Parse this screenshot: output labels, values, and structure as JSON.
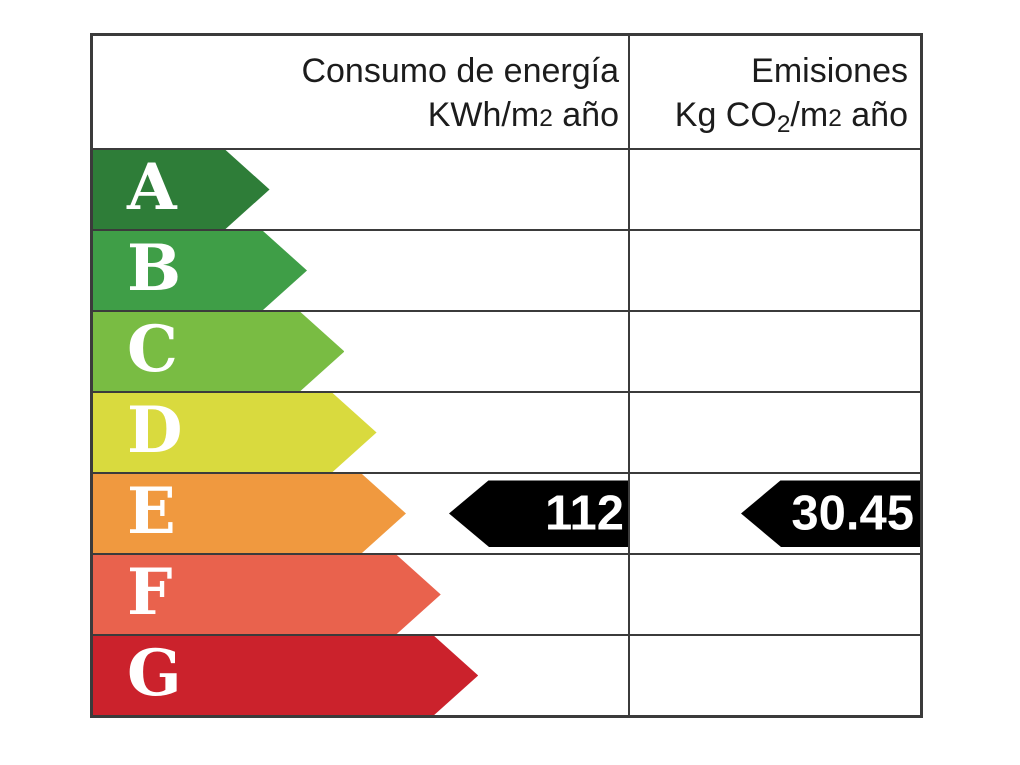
{
  "header": {
    "consumption": {
      "line1": "Consumo de energía",
      "line2_prefix": "KWh/m",
      "line2_exp": "2",
      "line2_suffix": " año"
    },
    "emissions": {
      "line1": "Emisiones",
      "line2_prefix": "Kg CO",
      "line2_sub": "2",
      "line2_mid": "/m",
      "line2_exp": "2",
      "line2_suffix": " año"
    }
  },
  "chart_data": {
    "type": "table",
    "columns": [
      "Consumo de energía KWh/m2 año",
      "Emisiones Kg CO2/m2 año"
    ],
    "ratings": [
      {
        "letter": "A",
        "color": "#2e7d38",
        "arrow_length_pct": 33
      },
      {
        "letter": "B",
        "color": "#3f9e47",
        "arrow_length_pct": 40
      },
      {
        "letter": "C",
        "color": "#79bc43",
        "arrow_length_pct": 47
      },
      {
        "letter": "D",
        "color": "#d9da3e",
        "arrow_length_pct": 53
      },
      {
        "letter": "E",
        "color": "#f0993f",
        "arrow_length_pct": 58.5
      },
      {
        "letter": "F",
        "color": "#e9624d",
        "arrow_length_pct": 65
      },
      {
        "letter": "G",
        "color": "#cb222c",
        "arrow_length_pct": 72
      }
    ],
    "indicator_row": "E",
    "indicator_color": "#000000",
    "values": {
      "consumption": "112",
      "emissions": "30.45"
    }
  }
}
